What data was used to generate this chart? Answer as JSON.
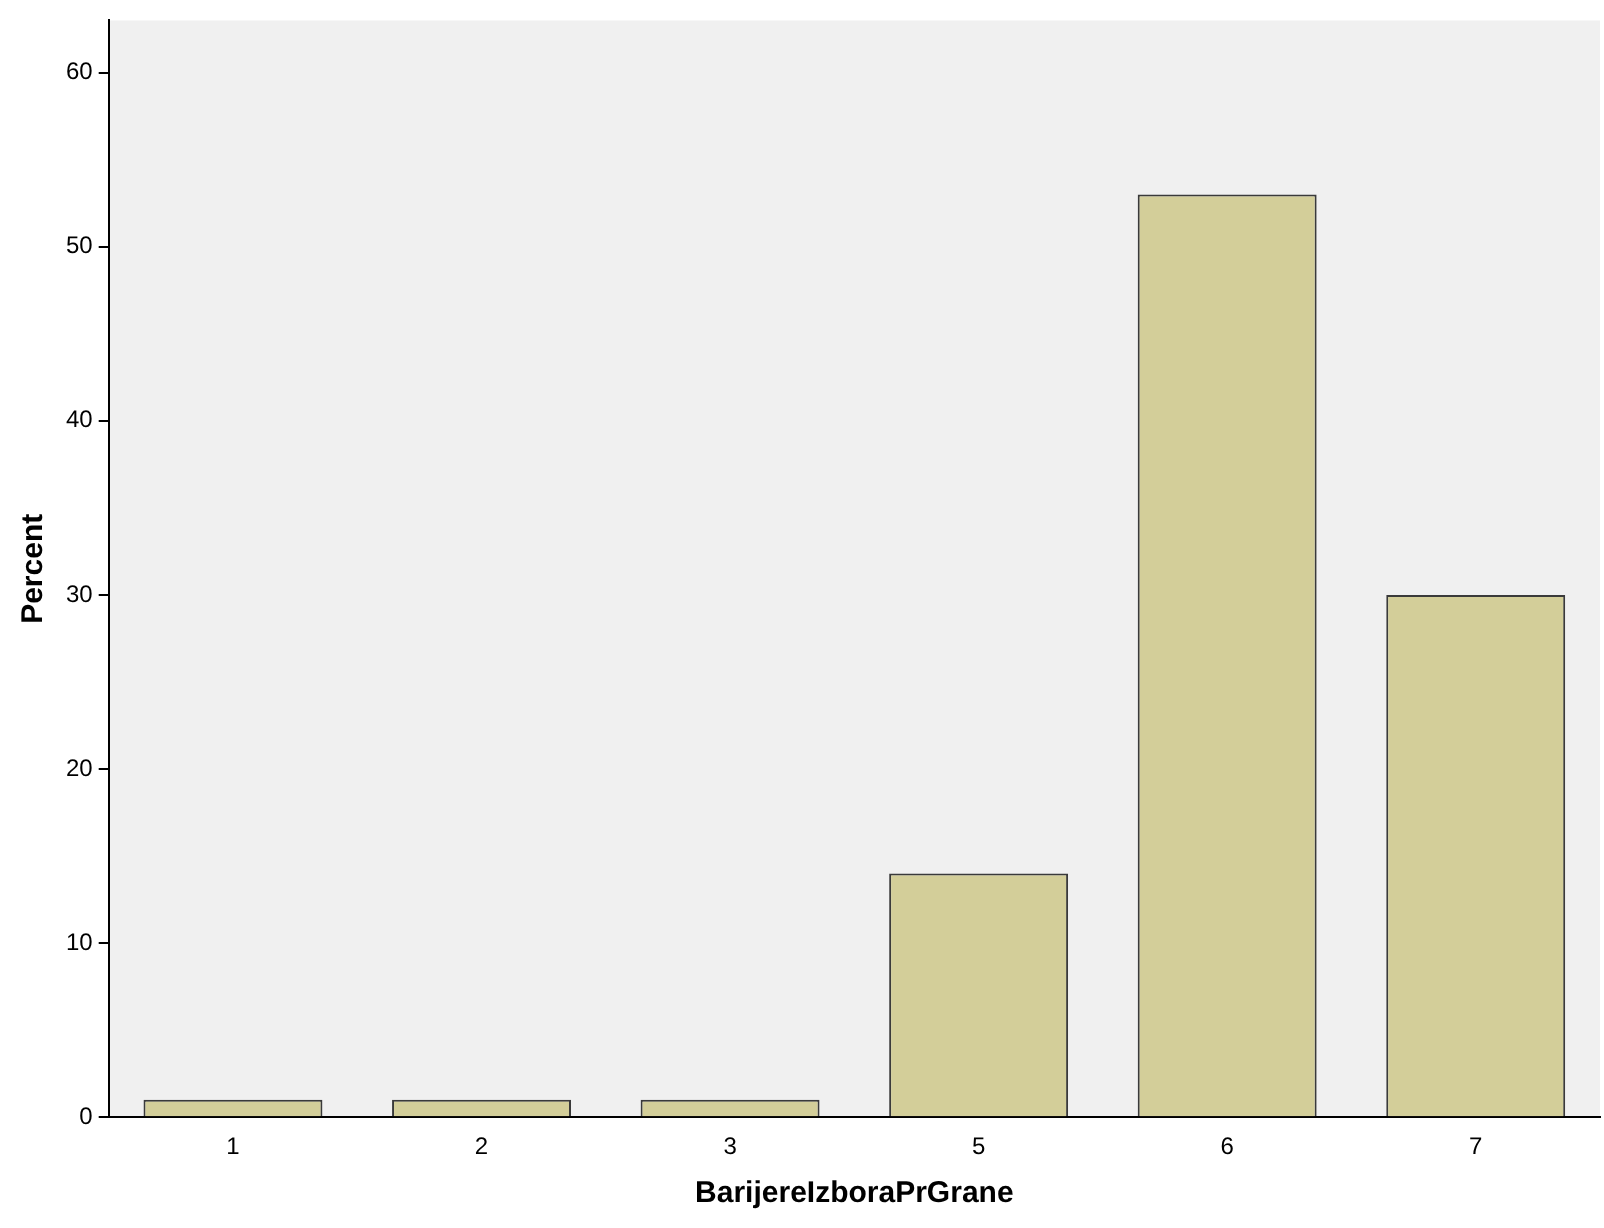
{
  "chart_data": {
    "type": "bar",
    "xlabel": "BarijereIzboraPrGrane",
    "ylabel": "Percent",
    "categories": [
      "1",
      "2",
      "3",
      "5",
      "6",
      "7"
    ],
    "values": [
      1,
      1,
      1,
      14,
      53,
      30
    ],
    "color": "#d3ce99",
    "ylim": [
      0,
      63
    ],
    "yticks": [
      0,
      10,
      20,
      30,
      40,
      50,
      60
    ],
    "grid": false,
    "legend": false
  }
}
